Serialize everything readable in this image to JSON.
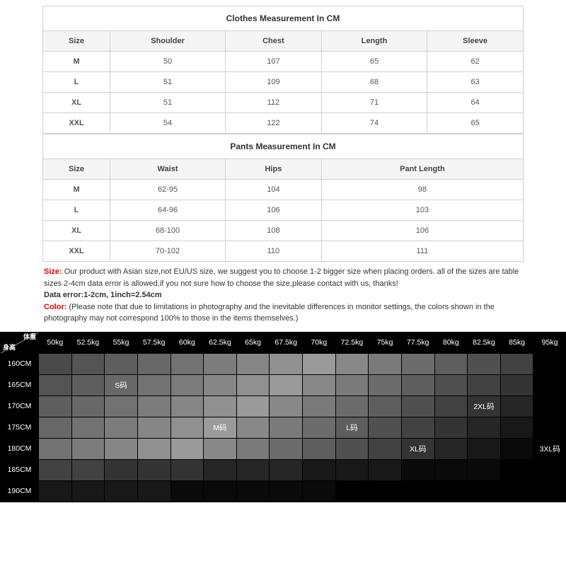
{
  "clothes": {
    "title": "Clothes Measurement In CM",
    "columns": [
      "Size",
      "Shoulder",
      "Chest",
      "Length",
      "Sleeve"
    ],
    "col_widths": [
      "14%",
      "24%",
      "20%",
      "22%",
      "20%"
    ],
    "rows": [
      [
        "M",
        "50",
        "107",
        "65",
        "62"
      ],
      [
        "L",
        "51",
        "109",
        "68",
        "63"
      ],
      [
        "XL",
        "51",
        "112",
        "71",
        "64"
      ],
      [
        "XXL",
        "54",
        "122",
        "74",
        "65"
      ]
    ]
  },
  "pants": {
    "title": "Pants Measurement In CM",
    "columns": [
      "Size",
      "Waist",
      "Hips",
      "Pant Length"
    ],
    "col_widths": [
      "14%",
      "24%",
      "20%",
      "42%"
    ],
    "rows": [
      [
        "M",
        "62-95",
        "104",
        "98"
      ],
      [
        "L",
        "64-96",
        "106",
        "103"
      ],
      [
        "XL",
        "68-100",
        "108",
        "106"
      ],
      [
        "XXL",
        "70-102",
        "110",
        "111"
      ]
    ]
  },
  "notes": {
    "size_label": "Size:",
    "size_text": " Our product with Asian size,not EU/US size, we suggest you to choose 1-2 bigger size when placing orders. all of the sizes are table sizes 2-4cm data error is allowed,if you not sure how to choose the size,please contact with us, thanks!",
    "data_error": "Data error:1-2cm, 1inch=2.54cm",
    "color_label": "Color:",
    "color_text": " (Please note that due to limitations in photography and the inevitable  differences in monitor settings, the colors shown in the photography may not  correspond 100% to those in the items themselves.)"
  },
  "heatmap": {
    "corner_top": "体重",
    "corner_bottom": "身高",
    "weights": [
      "50kg",
      "52.5kg",
      "55kg",
      "57.5kg",
      "60kg",
      "62.5kg",
      "65kg",
      "67.5kg",
      "70kg",
      "72.5kg",
      "75kg",
      "77.5kg",
      "80kg",
      "82.5kg",
      "85kg",
      "95kg"
    ],
    "heights": [
      "160CM",
      "165CM",
      "170CM",
      "175CM",
      "180CM",
      "185CM",
      "190CM"
    ],
    "grey_palette": [
      "#4a4a4a",
      "#545454",
      "#5e5e5e",
      "#686868",
      "#727272",
      "#7c7c7c",
      "#868686",
      "#909090",
      "#9a9a9a",
      "#888888",
      "#7a7a7a",
      "#6c6c6c",
      "#5e5e5e",
      "#505050",
      "#424242",
      "#343434",
      "#262626",
      "#181818",
      "#0a0a0a",
      "#000000"
    ],
    "shade_rows": [
      [
        0,
        1,
        2,
        3,
        4,
        5,
        6,
        7,
        8,
        9,
        10,
        11,
        12,
        13,
        14,
        19
      ],
      [
        1,
        2,
        3,
        4,
        5,
        6,
        7,
        8,
        9,
        10,
        11,
        12,
        13,
        14,
        15,
        19
      ],
      [
        2,
        3,
        4,
        5,
        6,
        7,
        8,
        9,
        10,
        11,
        12,
        13,
        14,
        15,
        16,
        19
      ],
      [
        3,
        4,
        5,
        6,
        7,
        8,
        9,
        10,
        11,
        12,
        13,
        14,
        15,
        16,
        17,
        19
      ],
      [
        4,
        5,
        6,
        7,
        8,
        9,
        10,
        11,
        12,
        13,
        14,
        15,
        16,
        17,
        18,
        19
      ],
      [
        14,
        14,
        15,
        15,
        15,
        16,
        16,
        16,
        17,
        17,
        17,
        18,
        18,
        18,
        19,
        19
      ],
      [
        17,
        17,
        17,
        17,
        18,
        18,
        18,
        18,
        18,
        19,
        19,
        19,
        19,
        19,
        19,
        19
      ]
    ],
    "labels": [
      {
        "row": 1,
        "col": 2,
        "text": "S码"
      },
      {
        "row": 3,
        "col": 5,
        "text": "M码"
      },
      {
        "row": 3,
        "col": 9,
        "text": "L码"
      },
      {
        "row": 4,
        "col": 11,
        "text": "XL码"
      },
      {
        "row": 2,
        "col": 13,
        "text": "2XL码"
      },
      {
        "row": 4,
        "col": 15,
        "text": "3XL码"
      }
    ]
  }
}
